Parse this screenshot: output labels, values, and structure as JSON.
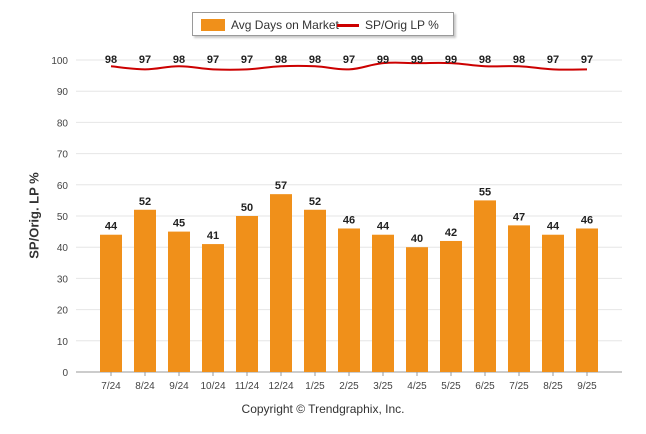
{
  "legend": {
    "bar_label": "Avg Days on Market",
    "line_label": "SP/Orig LP %"
  },
  "footer": {
    "copyright": "Copyright © Trendgraphix, Inc."
  },
  "colors": {
    "bar": "#F0901A",
    "line": "#CC0000",
    "grid": "#e6e6e6",
    "axis": "#999999"
  },
  "chart_data": {
    "type": "bar",
    "categories": [
      "7/24",
      "8/24",
      "9/24",
      "10/24",
      "11/24",
      "12/24",
      "1/25",
      "2/25",
      "3/25",
      "4/25",
      "5/25",
      "6/25",
      "7/25",
      "8/25",
      "9/25"
    ],
    "series": [
      {
        "name": "Avg Days on Market",
        "type": "bar",
        "values": [
          44,
          52,
          45,
          41,
          50,
          57,
          52,
          46,
          44,
          40,
          42,
          55,
          47,
          44,
          46
        ]
      },
      {
        "name": "SP/Orig LP %",
        "type": "line",
        "values": [
          98,
          97,
          98,
          97,
          97,
          98,
          98,
          97,
          99,
          99,
          99,
          98,
          98,
          97,
          97
        ]
      }
    ],
    "ylabel": "SP/Orig. LP %",
    "ylim": [
      0,
      100
    ],
    "yticks": [
      0,
      10,
      20,
      30,
      40,
      50,
      60,
      70,
      80,
      90,
      100
    ],
    "grid": true,
    "legend_position": "top-center"
  }
}
